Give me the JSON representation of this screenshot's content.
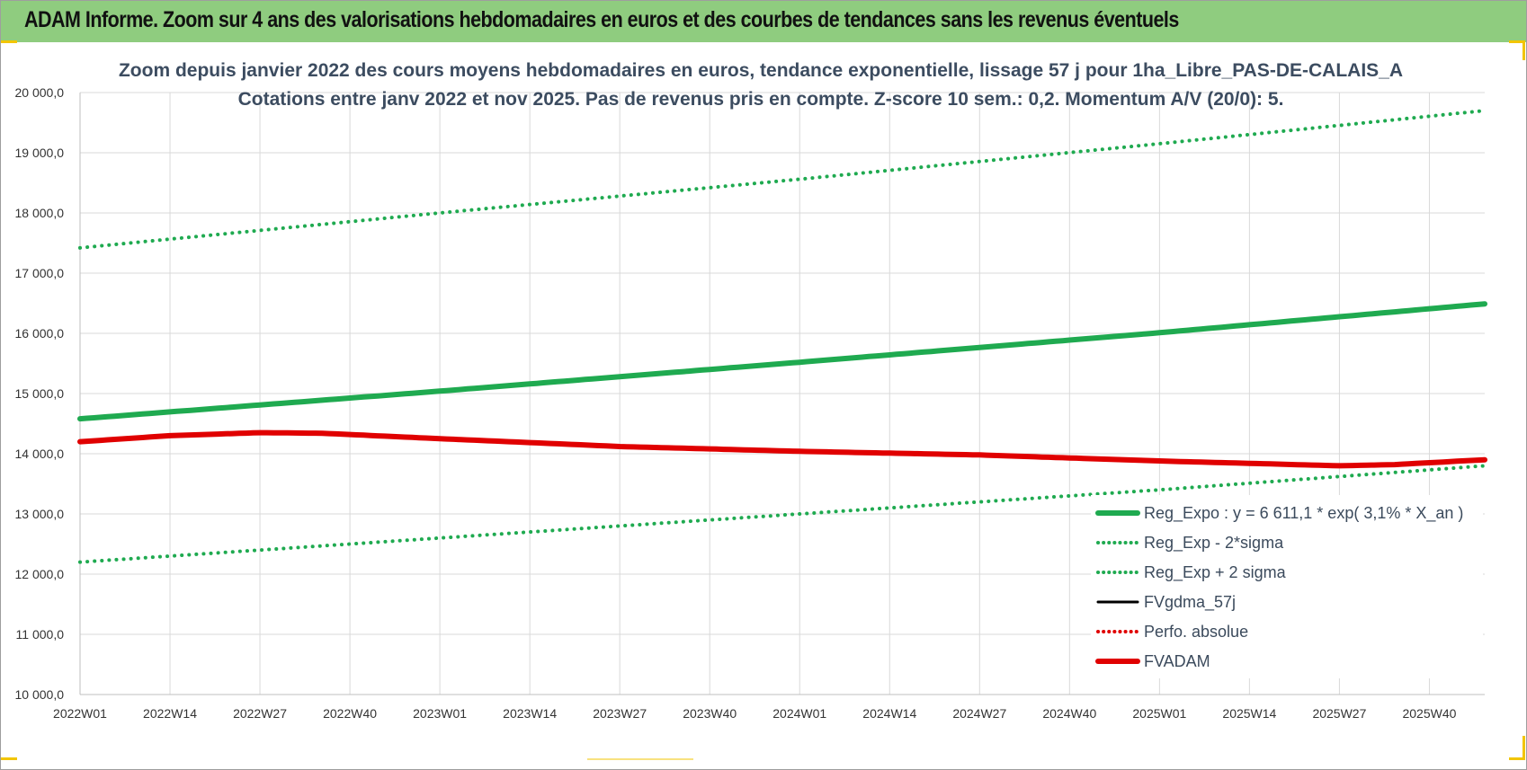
{
  "banner": {
    "title": "ADAM Informe. Zoom sur 4 ans des valorisations hebdomadaires en euros et des courbes de tendances sans les revenus éventuels"
  },
  "colors": {
    "banner_bg": "#8fcc7f",
    "trend": "#1faa50",
    "band": "#1faa50",
    "fvgdma": "#000000",
    "perfo": "#e00000",
    "fvadam": "#e00000",
    "grid": "#d9d9d9"
  },
  "chart_data": {
    "type": "line",
    "title": "Zoom depuis janvier 2022 des cours moyens hebdomadaires en euros, tendance exponentielle, lissage 57 j pour 1ha_Libre_PAS-DE-CALAIS_A",
    "subtitle": "Cotations entre janv 2022 et nov 2025. Pas de revenus pris en compte. Z-score 10 sem.: 0,2. Momentum A/V (20/0): 5.",
    "x_ticks": [
      "2022W01",
      "2022W14",
      "2022W27",
      "2022W40",
      "2023W01",
      "2023W14",
      "2023W27",
      "2023W40",
      "2024W01",
      "2024W14",
      "2024W27",
      "2024W40",
      "2025W01",
      "2025W14",
      "2025W27",
      "2025W40"
    ],
    "x_range_weeks": [
      0,
      203
    ],
    "y_ticks": [
      "10 000,0",
      "11 000,0",
      "12 000,0",
      "13 000,0",
      "14 000,0",
      "15 000,0",
      "16 000,0",
      "17 000,0",
      "18 000,0",
      "19 000,0",
      "20 000,0"
    ],
    "ylim": [
      10000,
      20000
    ],
    "grid": true,
    "legend_position": "bottom-right",
    "series": [
      {
        "name": "Reg_Expo : y = 6 611,1 * exp( 3,1% *  X_an )",
        "style": "solid-thick",
        "color": "#1faa50",
        "x": [
          0,
          52,
          104,
          156,
          203
        ],
        "y": [
          14580,
          15040,
          15520,
          16010,
          16490
        ]
      },
      {
        "name": "Reg_Exp - 2*sigma",
        "style": "dotted",
        "color": "#1faa50",
        "x": [
          0,
          52,
          104,
          156,
          203
        ],
        "y": [
          12200,
          12600,
          13000,
          13400,
          13800
        ]
      },
      {
        "name": "Reg_Exp + 2 sigma",
        "style": "dotted",
        "color": "#1faa50",
        "x": [
          0,
          52,
          104,
          156,
          203
        ],
        "y": [
          17420,
          18000,
          18560,
          19150,
          19700
        ]
      },
      {
        "name": "FVgdma_57j",
        "style": "solid",
        "color": "#000000",
        "x": [
          0,
          13,
          26,
          35,
          52,
          78,
          104,
          130,
          156,
          182,
          190,
          203
        ],
        "y": [
          14200,
          14300,
          14350,
          14340,
          14250,
          14120,
          14040,
          13980,
          13880,
          13800,
          13820,
          13900
        ]
      },
      {
        "name": "Perfo. absolue",
        "style": "dotted",
        "color": "#e00000",
        "x": [
          0,
          13,
          26,
          35,
          52,
          78,
          104,
          130,
          156,
          182,
          190,
          203
        ],
        "y": [
          14200,
          14300,
          14350,
          14340,
          14250,
          14120,
          14040,
          13980,
          13880,
          13800,
          13820,
          13900
        ]
      },
      {
        "name": "FVADAM",
        "style": "solid-thick",
        "color": "#e00000",
        "x": [
          0,
          13,
          26,
          35,
          52,
          78,
          104,
          130,
          156,
          182,
          190,
          203
        ],
        "y": [
          14200,
          14300,
          14350,
          14340,
          14250,
          14120,
          14040,
          13980,
          13880,
          13800,
          13820,
          13900
        ]
      }
    ]
  }
}
